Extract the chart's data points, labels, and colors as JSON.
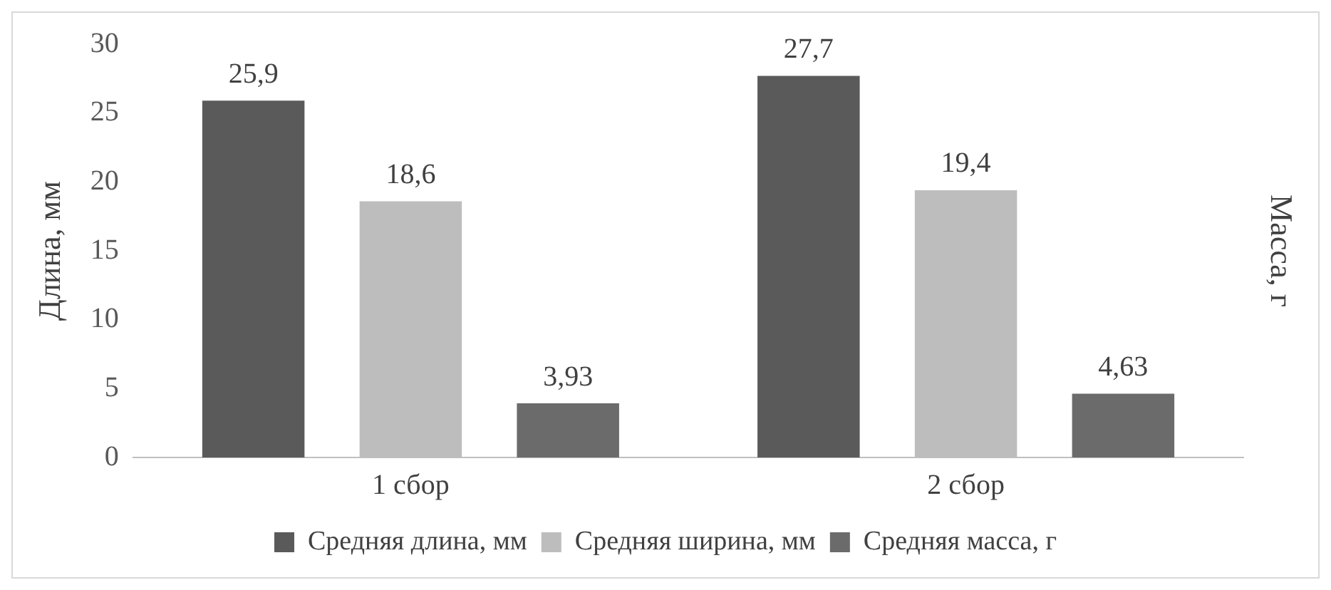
{
  "chart_data": {
    "type": "bar",
    "ylabel": "Длина, мм",
    "y2label": "Масса, г",
    "categories": [
      "1 сбор",
      "2 сбор"
    ],
    "series": [
      {
        "name": "Средняя длина, мм",
        "color": "#5a5a5a",
        "values": [
          25.9,
          27.7
        ],
        "value_labels": [
          "25,9",
          "27,7"
        ]
      },
      {
        "name": "Средняя ширина, мм",
        "color": "#bdbdbd",
        "values": [
          18.6,
          19.4
        ],
        "value_labels": [
          "18,6",
          "19,4"
        ]
      },
      {
        "name": "Средняя масса, г",
        "color": "#6b6b6b",
        "values": [
          3.93,
          4.63
        ],
        "value_labels": [
          "3,93",
          "4,63"
        ]
      }
    ],
    "ylim": [
      0,
      30
    ],
    "yticks": [
      0,
      5,
      10,
      15,
      20,
      25,
      30
    ],
    "grid": false,
    "legend": "bottom"
  }
}
